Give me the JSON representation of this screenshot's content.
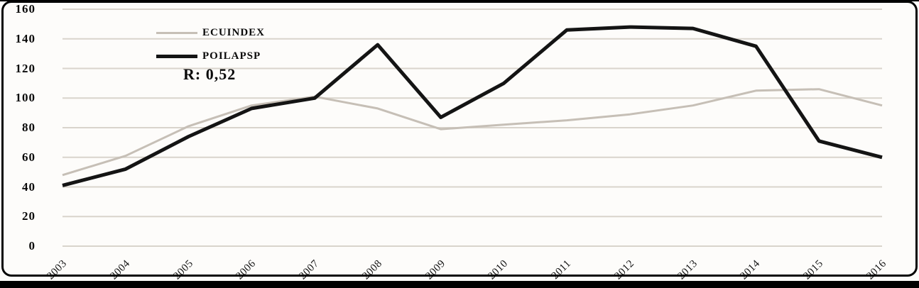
{
  "chart_data": {
    "type": "line",
    "title": "",
    "xlabel": "",
    "ylabel": "",
    "categories": [
      "2003",
      "2004",
      "2005",
      "2006",
      "2007",
      "2008",
      "2009",
      "2010",
      "2011",
      "2012",
      "2013",
      "2014",
      "2015",
      "2016"
    ],
    "series": [
      {
        "name": "ECUINDEX",
        "color": "#c6bfb6",
        "stroke_width": 3,
        "values": [
          48,
          61,
          81,
          95,
          101,
          93,
          79,
          82,
          85,
          89,
          95,
          105,
          106,
          95
        ]
      },
      {
        "name": "POILAPSP",
        "color": "#141414",
        "stroke_width": 5,
        "values": [
          41,
          52,
          74,
          93,
          100,
          136,
          87,
          110,
          146,
          148,
          147,
          135,
          71,
          60
        ]
      }
    ],
    "ylim": [
      0,
      160
    ],
    "ytick_step": 20,
    "yticks": [
      0,
      20,
      40,
      60,
      80,
      100,
      120,
      140,
      160
    ],
    "grid": "horizontal",
    "gridline_color": "#d9d4cc",
    "legend_position": "top-left-inside",
    "annotation": "R: 0,52"
  },
  "annotation": {
    "text": "R: 0,52"
  },
  "colors": {
    "background": "#fdfcfa",
    "frame_border": "#050505",
    "gridline": "#d9d4cc",
    "ecuindex_line": "#c6bfb6",
    "poilapsp_line": "#141414"
  }
}
